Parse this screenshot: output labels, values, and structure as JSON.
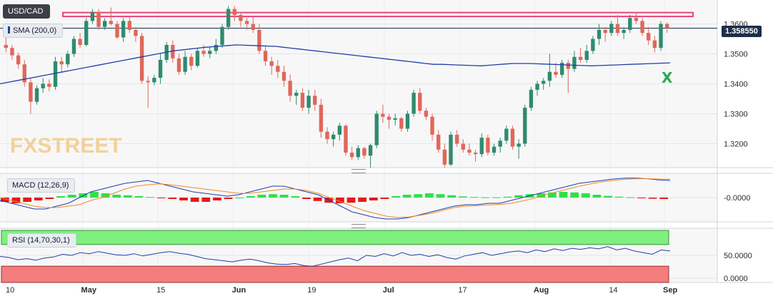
{
  "instrument": "USD/CAD",
  "indicators": {
    "sma": "SMA (200,0)",
    "macd": "MACD (12,26,9)",
    "rsi": "RSI (14,70,30,1)"
  },
  "last_price": "1.358550",
  "watermark": "FXSTREET",
  "annotation_mark": "X",
  "colors": {
    "up_candle": "#2e8b6e",
    "down_candle": "#e0675a",
    "sma_line": "#1f3fa8",
    "resistance_band": "#e8457a",
    "macd_line": "#1f3fa8",
    "signal_line": "#f08a24",
    "hist_pos": "#2ee04a",
    "hist_neg": "#e41a1a",
    "rsi_line": "#1f3fa8",
    "rsi_overbought": "#7ef07e",
    "rsi_oversold": "#f47d7d",
    "annotation": "#2fa84f",
    "watermark": "#f0b24a"
  },
  "chart_data": [
    {
      "type": "candlestick",
      "title": "USD/CAD",
      "x_tick_labels": [
        "10",
        "May",
        "15",
        "Jun",
        "19",
        "Jul",
        "17",
        "Aug",
        "14",
        "Sep"
      ],
      "y_tick_labels": [
        "1.3600",
        "1.3500",
        "1.3400",
        "1.3300",
        "1.3200"
      ],
      "ylim": [
        1.312,
        1.368
      ],
      "grid": true,
      "resistance_zone": [
        1.3625,
        1.3638
      ],
      "candles_ohlc": [
        [
          1.353,
          1.3555,
          1.3505,
          1.352
        ],
        [
          1.352,
          1.353,
          1.348,
          1.3495
        ],
        [
          1.3495,
          1.3505,
          1.345,
          1.3465
        ],
        [
          1.3465,
          1.348,
          1.339,
          1.3405
        ],
        [
          1.3405,
          1.342,
          1.33,
          1.334
        ],
        [
          1.334,
          1.3395,
          1.333,
          1.3385
        ],
        [
          1.3385,
          1.342,
          1.337,
          1.34
        ],
        [
          1.34,
          1.3415,
          1.3375,
          1.339
        ],
        [
          1.339,
          1.349,
          1.338,
          1.3475
        ],
        [
          1.3475,
          1.349,
          1.344,
          1.3465
        ],
        [
          1.3465,
          1.351,
          1.3455,
          1.35
        ],
        [
          1.35,
          1.356,
          1.349,
          1.355
        ],
        [
          1.355,
          1.357,
          1.352,
          1.353
        ],
        [
          1.353,
          1.362,
          1.3525,
          1.361
        ],
        [
          1.361,
          1.365,
          1.36,
          1.364
        ],
        [
          1.364,
          1.365,
          1.358,
          1.359
        ],
        [
          1.359,
          1.362,
          1.358,
          1.361
        ],
        [
          1.361,
          1.3655,
          1.3595,
          1.36
        ],
        [
          1.36,
          1.361,
          1.355,
          1.3555
        ],
        [
          1.3555,
          1.362,
          1.354,
          1.361
        ],
        [
          1.361,
          1.3625,
          1.357,
          1.358
        ],
        [
          1.358,
          1.359,
          1.354,
          1.356
        ],
        [
          1.356,
          1.357,
          1.34,
          1.341
        ],
        [
          1.341,
          1.3425,
          1.332,
          1.3405
        ],
        [
          1.3405,
          1.343,
          1.3395,
          1.342
        ],
        [
          1.342,
          1.35,
          1.34,
          1.348
        ],
        [
          1.348,
          1.354,
          1.347,
          1.353
        ],
        [
          1.353,
          1.3545,
          1.347,
          1.3485
        ],
        [
          1.3485,
          1.35,
          1.343,
          1.344
        ],
        [
          1.344,
          1.351,
          1.343,
          1.349
        ],
        [
          1.349,
          1.35,
          1.3445,
          1.346
        ],
        [
          1.346,
          1.352,
          1.3455,
          1.351
        ],
        [
          1.351,
          1.353,
          1.349,
          1.35
        ],
        [
          1.35,
          1.3525,
          1.3485,
          1.351
        ],
        [
          1.351,
          1.355,
          1.35,
          1.353
        ],
        [
          1.353,
          1.36,
          1.352,
          1.359
        ],
        [
          1.359,
          1.366,
          1.358,
          1.365
        ],
        [
          1.365,
          1.366,
          1.361,
          1.363
        ],
        [
          1.363,
          1.364,
          1.359,
          1.361
        ],
        [
          1.361,
          1.362,
          1.358,
          1.36
        ],
        [
          1.36,
          1.3625,
          1.357,
          1.358
        ],
        [
          1.358,
          1.36,
          1.35,
          1.351
        ],
        [
          1.351,
          1.3525,
          1.346,
          1.3475
        ],
        [
          1.3475,
          1.349,
          1.343,
          1.346
        ],
        [
          1.346,
          1.348,
          1.342,
          1.344
        ],
        [
          1.344,
          1.346,
          1.339,
          1.341
        ],
        [
          1.341,
          1.343,
          1.334,
          1.336
        ],
        [
          1.336,
          1.338,
          1.333,
          1.337
        ],
        [
          1.337,
          1.3385,
          1.331,
          1.332
        ],
        [
          1.332,
          1.338,
          1.33,
          1.336
        ],
        [
          1.336,
          1.338,
          1.331,
          1.333
        ],
        [
          1.333,
          1.335,
          1.322,
          1.324
        ],
        [
          1.324,
          1.3255,
          1.32,
          1.3215
        ],
        [
          1.3215,
          1.324,
          1.319,
          1.323
        ],
        [
          1.323,
          1.327,
          1.321,
          1.326
        ],
        [
          1.326,
          1.3265,
          1.316,
          1.317
        ],
        [
          1.317,
          1.319,
          1.3145,
          1.3155
        ],
        [
          1.3155,
          1.3195,
          1.3145,
          1.3185
        ],
        [
          1.3185,
          1.319,
          1.315,
          1.316
        ],
        [
          1.316,
          1.32,
          1.312,
          1.3195
        ],
        [
          1.3195,
          1.331,
          1.3185,
          1.33
        ],
        [
          1.33,
          1.333,
          1.327,
          1.329
        ],
        [
          1.329,
          1.33,
          1.325,
          1.328
        ],
        [
          1.328,
          1.33,
          1.326,
          1.3285
        ],
        [
          1.3285,
          1.329,
          1.324,
          1.325
        ],
        [
          1.325,
          1.331,
          1.324,
          1.33
        ],
        [
          1.33,
          1.338,
          1.329,
          1.337
        ],
        [
          1.337,
          1.3385,
          1.33,
          1.331
        ],
        [
          1.331,
          1.332,
          1.328,
          1.329
        ],
        [
          1.329,
          1.33,
          1.321,
          1.323
        ],
        [
          1.323,
          1.3245,
          1.317,
          1.318
        ],
        [
          1.318,
          1.32,
          1.312,
          1.313
        ],
        [
          1.313,
          1.324,
          1.3125,
          1.323
        ],
        [
          1.323,
          1.3245,
          1.319,
          1.32
        ],
        [
          1.32,
          1.3215,
          1.317,
          1.318
        ],
        [
          1.318,
          1.32,
          1.316,
          1.317
        ],
        [
          1.317,
          1.318,
          1.314,
          1.3165
        ],
        [
          1.3165,
          1.3235,
          1.3155,
          1.322
        ],
        [
          1.322,
          1.323,
          1.316,
          1.317
        ],
        [
          1.317,
          1.32,
          1.316,
          1.319
        ],
        [
          1.319,
          1.322,
          1.317,
          1.321
        ],
        [
          1.321,
          1.326,
          1.32,
          1.325
        ],
        [
          1.325,
          1.326,
          1.318,
          1.319
        ],
        [
          1.319,
          1.3215,
          1.315,
          1.32
        ],
        [
          1.32,
          1.333,
          1.319,
          1.332
        ],
        [
          1.332,
          1.339,
          1.331,
          1.338
        ],
        [
          1.338,
          1.341,
          1.336,
          1.34
        ],
        [
          1.34,
          1.342,
          1.338,
          1.341
        ],
        [
          1.341,
          1.35,
          1.339,
          1.344
        ],
        [
          1.344,
          1.347,
          1.342,
          1.343
        ],
        [
          1.343,
          1.348,
          1.342,
          1.347
        ],
        [
          1.347,
          1.348,
          1.337,
          1.345
        ],
        [
          1.345,
          1.351,
          1.344,
          1.349
        ],
        [
          1.349,
          1.352,
          1.347,
          1.348
        ],
        [
          1.348,
          1.353,
          1.347,
          1.351
        ],
        [
          1.351,
          1.356,
          1.35,
          1.355
        ],
        [
          1.355,
          1.36,
          1.353,
          1.358
        ],
        [
          1.358,
          1.359,
          1.354,
          1.357
        ],
        [
          1.357,
          1.361,
          1.356,
          1.36
        ],
        [
          1.36,
          1.363,
          1.356,
          1.357
        ],
        [
          1.357,
          1.359,
          1.355,
          1.358
        ],
        [
          1.358,
          1.363,
          1.357,
          1.362
        ],
        [
          1.362,
          1.364,
          1.36,
          1.361
        ],
        [
          1.361,
          1.362,
          1.356,
          1.357
        ],
        [
          1.357,
          1.359,
          1.353,
          1.3545
        ],
        [
          1.3545,
          1.356,
          1.3505,
          1.352
        ],
        [
          1.352,
          1.361,
          1.351,
          1.36
        ],
        [
          1.36,
          1.3605,
          1.357,
          1.3586
        ]
      ],
      "sma_200": [
        1.34,
        1.3405,
        1.341,
        1.3415,
        1.342,
        1.3425,
        1.343,
        1.3435,
        1.344,
        1.3445,
        1.345,
        1.3455,
        1.346,
        1.3465,
        1.347,
        1.3475,
        1.348,
        1.3485,
        1.349,
        1.3495,
        1.35,
        1.3505,
        1.351,
        1.3513,
        1.3516,
        1.3519,
        1.3522,
        1.3524,
        1.3526,
        1.3528,
        1.353,
        1.3529,
        1.3528,
        1.3527,
        1.3526,
        1.3525,
        1.3522,
        1.3519,
        1.3516,
        1.3513,
        1.351,
        1.3507,
        1.3504,
        1.3501,
        1.3498,
        1.3495,
        1.3492,
        1.3489,
        1.3486,
        1.3483,
        1.348,
        1.3477,
        1.3474,
        1.3471,
        1.3468,
        1.3465,
        1.3465,
        1.3464,
        1.3463,
        1.3462,
        1.3461,
        1.346,
        1.3462,
        1.3464,
        1.3466,
        1.3468,
        1.3468,
        1.3468,
        1.3467,
        1.3466,
        1.3465,
        1.3464,
        1.3463,
        1.3462,
        1.3461,
        1.346,
        1.3461,
        1.3462,
        1.3463,
        1.3464,
        1.3465,
        1.3466,
        1.3467,
        1.3468,
        1.3469,
        1.347
      ]
    },
    {
      "type": "line",
      "title": "MACD (12,26,9)",
      "y_tick_labels": [
        "-0.0000"
      ],
      "ylim": [
        -0.0085,
        0.0085
      ],
      "series": [
        {
          "name": "MACD",
          "values": [
            -0.001,
            -0.002,
            -0.003,
            -0.004,
            -0.004,
            -0.003,
            -0.002,
            0.0,
            0.002,
            0.003,
            0.004,
            0.005,
            0.0055,
            0.006,
            0.005,
            0.004,
            0.003,
            0.002,
            0.0015,
            0.001,
            0.0005,
            0.001,
            0.002,
            0.003,
            0.004,
            0.004,
            0.003,
            0.002,
            0.001,
            -0.001,
            -0.003,
            -0.005,
            -0.006,
            -0.007,
            -0.0075,
            -0.0075,
            -0.007,
            -0.006,
            -0.005,
            -0.004,
            -0.003,
            -0.0025,
            -0.0025,
            -0.002,
            -0.002,
            -0.001,
            0.0,
            0.001,
            0.002,
            0.003,
            0.004,
            0.005,
            0.0055,
            0.006,
            0.0065,
            0.0068,
            0.0068,
            0.0066,
            0.0062,
            0.006
          ]
        },
        {
          "name": "Signal",
          "values": [
            0.0,
            -0.001,
            -0.002,
            -0.003,
            -0.0035,
            -0.0035,
            -0.003,
            -0.0025,
            -0.001,
            0.0,
            0.0015,
            0.003,
            0.004,
            0.0045,
            0.0048,
            0.0045,
            0.004,
            0.0035,
            0.003,
            0.0025,
            0.002,
            0.0015,
            0.0015,
            0.002,
            0.0025,
            0.003,
            0.003,
            0.0025,
            0.0015,
            0.0,
            -0.0015,
            -0.003,
            -0.0045,
            -0.0055,
            -0.0065,
            -0.007,
            -0.0068,
            -0.0062,
            -0.0055,
            -0.0045,
            -0.0035,
            -0.003,
            -0.0028,
            -0.0026,
            -0.0024,
            -0.002,
            -0.0012,
            -0.0003,
            0.001,
            0.002,
            0.003,
            0.004,
            0.0048,
            0.0055,
            0.006,
            0.0064,
            0.0066,
            0.0066,
            0.0065,
            0.0064
          ]
        }
      ],
      "histogram": [
        -0.0015,
        -0.002,
        -0.0015,
        -0.001,
        -0.0005,
        0.0005,
        0.001,
        0.0015,
        0.002,
        0.0015,
        0.001,
        0.0008,
        0.0005,
        0.0002,
        -0.0002,
        -0.0005,
        -0.001,
        -0.0015,
        -0.0015,
        -0.001,
        -0.0005,
        0.0,
        0.0005,
        0.001,
        0.0012,
        0.001,
        0.0005,
        -0.0005,
        -0.0012,
        -0.0018,
        -0.002,
        -0.0018,
        -0.0015,
        -0.001,
        -0.0005,
        0.0005,
        0.001,
        0.0012,
        0.0015,
        0.0012,
        0.0008,
        0.0004,
        0.0002,
        0.0001,
        0.0001,
        0.0003,
        0.0008,
        0.0012,
        0.0015,
        0.0018,
        0.002,
        0.0018,
        0.0015,
        0.001,
        0.0006,
        0.0003,
        0.0001,
        -0.0002,
        -0.0004,
        -0.0005
      ]
    },
    {
      "type": "line",
      "title": "RSI (14,70,30,1)",
      "y_tick_labels": [
        "50.0000",
        "0.0000"
      ],
      "ylim": [
        0,
        100
      ],
      "overbought": 70,
      "oversold": 30,
      "series": [
        {
          "name": "RSI",
          "values": [
            48,
            46,
            42,
            44,
            41,
            45,
            47,
            52,
            50,
            55,
            53,
            57,
            54,
            51,
            50,
            53,
            49,
            52,
            55,
            57,
            54,
            52,
            48,
            44,
            42,
            40,
            38,
            41,
            43,
            40,
            36,
            34,
            33,
            35,
            31,
            30,
            34,
            38,
            42,
            45,
            40,
            50,
            48,
            53,
            49,
            55,
            50,
            52,
            48,
            51,
            46,
            43,
            49,
            52,
            55,
            50,
            53,
            56,
            58,
            55,
            60,
            57,
            62,
            59,
            63,
            61,
            64,
            62,
            66,
            60,
            63,
            58,
            55,
            52,
            60,
            58
          ]
        }
      ]
    }
  ]
}
